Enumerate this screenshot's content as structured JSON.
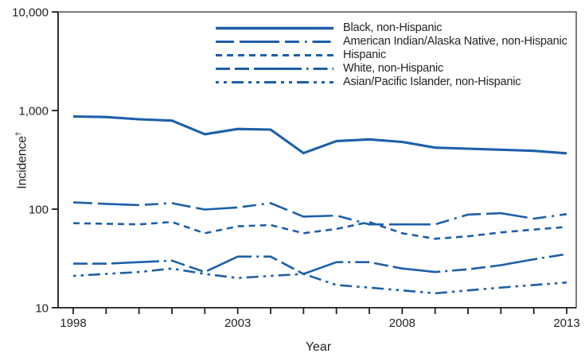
{
  "chart_data": {
    "type": "line",
    "title": "",
    "xlabel": "Year",
    "ylabel": "Incidence",
    "ylabel_superscript": "†",
    "y_scale": "log",
    "ylim": [
      10,
      10000
    ],
    "grid": false,
    "legend_position": "top-center-inside",
    "line_color": "#1d5fa8",
    "axis_color": "#231f20",
    "y_ticks": [
      {
        "label": "10,000",
        "value": 10000
      },
      {
        "label": "1,000",
        "value": 1000
      },
      {
        "label": "100",
        "value": 100
      },
      {
        "label": "10",
        "value": 10
      }
    ],
    "x": [
      1998,
      1999,
      2000,
      2001,
      2002,
      2003,
      2004,
      2005,
      2006,
      2007,
      2008,
      2009,
      2010,
      2011,
      2012,
      2013
    ],
    "x_tick_labels": [
      "1998",
      "2003",
      "2008",
      "2013"
    ],
    "series": [
      {
        "name": "Black, non-Hispanic",
        "line_style": "solid",
        "values": [
          870,
          858,
          815,
          790,
          575,
          650,
          640,
          370,
          490,
          510,
          480,
          420,
          410,
          400,
          390,
          368
        ]
      },
      {
        "name": "American Indian/Alaska Native, non-Hispanic",
        "line_style": "long-dash-dot",
        "values": [
          117,
          113,
          110,
          115,
          99,
          104,
          115,
          84,
          86,
          70,
          70,
          70,
          88,
          91,
          80,
          89
        ]
      },
      {
        "name": "Hispanic",
        "line_style": "short-dash",
        "values": [
          72,
          71,
          70,
          74,
          57,
          67,
          69,
          57,
          63,
          74,
          57,
          50,
          53,
          58,
          62,
          66
        ]
      },
      {
        "name": "White, non-Hispanic",
        "line_style": "long-dash",
        "values": [
          28,
          28,
          29,
          30,
          23,
          33,
          33,
          22,
          29,
          29,
          25,
          23,
          24.5,
          27,
          31,
          35
        ]
      },
      {
        "name": "Asian/Pacific Islander, non-Hispanic",
        "line_style": "dash-dot-dot",
        "values": [
          21,
          22,
          23,
          25,
          22,
          20,
          21,
          22,
          17,
          16,
          15,
          14,
          15,
          16,
          17,
          18
        ]
      }
    ]
  }
}
